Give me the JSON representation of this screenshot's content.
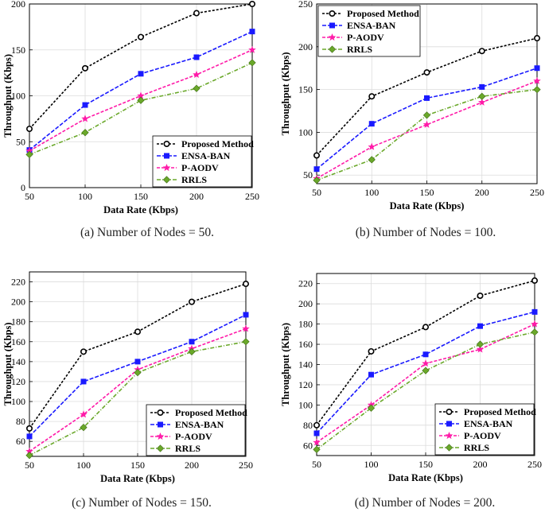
{
  "colors": {
    "proposed": "#000000",
    "ensa": "#1a1aff",
    "paodv": "#ff1aa8",
    "rrls": "#6aa82a"
  },
  "chart_data": [
    {
      "type": "line",
      "panel": "a",
      "caption": "(a)  Number of Nodes = 50.",
      "xlabel": "Data Rate (Kbps)",
      "ylabel": "Throughput (Kbps)",
      "x": [
        50,
        100,
        150,
        200,
        250
      ],
      "xlim": [
        50,
        250
      ],
      "ylim": [
        0,
        200
      ],
      "xticks": [
        "50",
        "100",
        "150",
        "200",
        "250"
      ],
      "yticks": [
        "0",
        "50",
        "100",
        "150",
        "200"
      ],
      "ytick_values": [
        0,
        50,
        100,
        150,
        200
      ],
      "grid": true,
      "legend_position": "bottom-right",
      "series": [
        {
          "name": "Proposed Method",
          "values": [
            64,
            130,
            164,
            190,
            200
          ]
        },
        {
          "name": "ENSA-BAN",
          "values": [
            41,
            90,
            124,
            142,
            170
          ]
        },
        {
          "name": "P-AODV",
          "values": [
            40,
            75,
            100,
            123,
            150
          ]
        },
        {
          "name": "RRLS",
          "values": [
            36,
            60,
            95,
            108,
            136
          ]
        }
      ]
    },
    {
      "type": "line",
      "panel": "b",
      "caption": "(b)  Number of Nodes = 100.",
      "xlabel": "Data Rate (Kbps)",
      "ylabel": "Throughput (Kbps)",
      "x": [
        50,
        100,
        150,
        200,
        250
      ],
      "xlim": [
        50,
        250
      ],
      "ylim": [
        40,
        250
      ],
      "xticks": [
        "50",
        "100",
        "150",
        "200",
        "250"
      ],
      "yticks": [
        "50",
        "100",
        "150",
        "200",
        "250"
      ],
      "ytick_values": [
        50,
        100,
        150,
        200,
        250
      ],
      "grid": true,
      "legend_position": "top-left",
      "series": [
        {
          "name": "Proposed Method",
          "values": [
            73,
            142,
            170,
            195,
            210
          ]
        },
        {
          "name": "ENSA-BAN",
          "values": [
            57,
            110,
            140,
            153,
            175
          ]
        },
        {
          "name": "P-AODV",
          "values": [
            46,
            83,
            109,
            135,
            160
          ]
        },
        {
          "name": "RRLS",
          "values": [
            44,
            68,
            120,
            142,
            150
          ]
        }
      ]
    },
    {
      "type": "line",
      "panel": "c",
      "caption": "(c)  Number of Nodes = 150.",
      "xlabel": "Data Rate (Kbps)",
      "ylabel": "Throughput (Kbps)",
      "x": [
        50,
        100,
        150,
        200,
        250
      ],
      "xlim": [
        50,
        250
      ],
      "ylim": [
        45,
        230
      ],
      "xticks": [
        "50",
        "100",
        "150",
        "200",
        "250"
      ],
      "yticks": [
        "60",
        "80",
        "100",
        "120",
        "140",
        "160",
        "180",
        "200",
        "220"
      ],
      "ytick_values": [
        60,
        80,
        100,
        120,
        140,
        160,
        180,
        200,
        220
      ],
      "grid": true,
      "legend_position": "bottom-right",
      "series": [
        {
          "name": "Proposed Method",
          "values": [
            73,
            150,
            170,
            200,
            218
          ]
        },
        {
          "name": "ENSA-BAN",
          "values": [
            65,
            120,
            140,
            160,
            187
          ]
        },
        {
          "name": "P-AODV",
          "values": [
            50,
            87,
            132,
            153,
            173
          ]
        },
        {
          "name": "RRLS",
          "values": [
            46,
            74,
            129,
            150,
            160
          ]
        }
      ]
    },
    {
      "type": "line",
      "panel": "d",
      "caption": "(d)  Number of Nodes = 200.",
      "xlabel": "Data Rate (Kbps)",
      "ylabel": "Throughput (Kbps)",
      "x": [
        50,
        100,
        150,
        200,
        250
      ],
      "xlim": [
        50,
        250
      ],
      "ylim": [
        50,
        230
      ],
      "xticks": [
        "50",
        "100",
        "150",
        "200",
        "250"
      ],
      "yticks": [
        "60",
        "80",
        "100",
        "120",
        "140",
        "160",
        "180",
        "200",
        "220"
      ],
      "ytick_values": [
        60,
        80,
        100,
        120,
        140,
        160,
        180,
        200,
        220
      ],
      "grid": true,
      "legend_position": "bottom-right",
      "series": [
        {
          "name": "Proposed Method",
          "values": [
            80,
            153,
            177,
            208,
            223
          ]
        },
        {
          "name": "ENSA-BAN",
          "values": [
            72,
            130,
            150,
            178,
            192
          ]
        },
        {
          "name": "P-AODV",
          "values": [
            63,
            100,
            141,
            155,
            180
          ]
        },
        {
          "name": "RRLS",
          "values": [
            56,
            97,
            134,
            160,
            172
          ]
        }
      ]
    }
  ]
}
